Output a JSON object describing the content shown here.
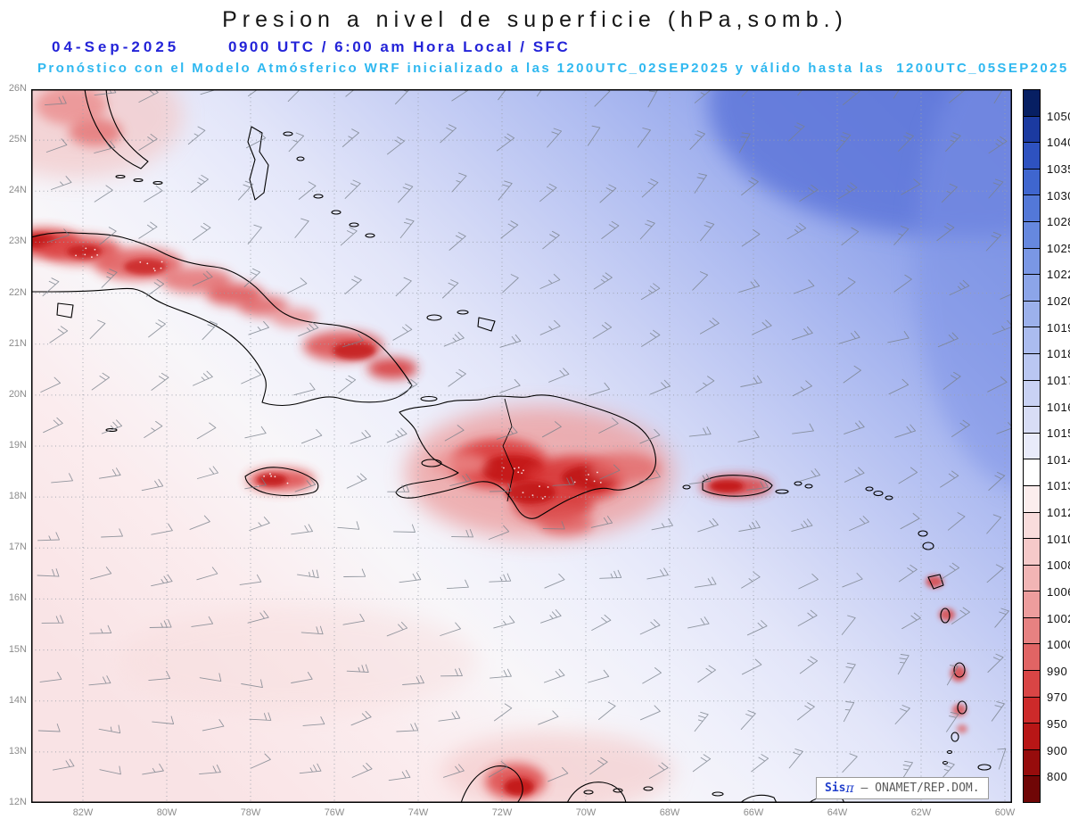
{
  "title": "Presion a nivel de superficie (hPa,somb.)",
  "header": {
    "date": "04-Sep-2025",
    "time_line": "0900 UTC / 6:00 am Hora Local / SFC",
    "forecast_line": "Pronóstico con el Modelo Atmósferico WRF inicializado a las 1200UTC_02SEP2025 y válido hasta las  1200UTC_05SEP2025",
    "date_color": "#2424d8",
    "forecast_color": "#2fb8f0",
    "title_color": "#161616"
  },
  "map": {
    "lat_labels": [
      "26N",
      "25N",
      "24N",
      "23N",
      "22N",
      "21N",
      "20N",
      "19N",
      "18N",
      "17N",
      "16N",
      "15N",
      "14N",
      "13N",
      "12N"
    ],
    "lon_labels": [
      "82W",
      "80W",
      "78W",
      "76W",
      "74W",
      "72W",
      "70W",
      "68W",
      "66W",
      "64W",
      "62W",
      "60W"
    ],
    "grid_color": "#9aa0aa",
    "wind_barb_color": "#79818b",
    "coastline_color": "#000000"
  },
  "colorbar": {
    "labels": [
      "1050",
      "1040",
      "1035",
      "1030",
      "1028",
      "1025",
      "1022",
      "1020",
      "1019",
      "1018",
      "1017",
      "1016",
      "1015",
      "1014",
      "1013",
      "1012",
      "1010",
      "1008",
      "1006",
      "1002",
      "1000",
      "990",
      "970",
      "950",
      "900",
      "800"
    ],
    "colors": [
      "#071f63",
      "#1b3aa0",
      "#2e52c0",
      "#3f66cf",
      "#5378d8",
      "#6688df",
      "#7a97e5",
      "#8ca5e9",
      "#9cb1ec",
      "#abbcef",
      "#bac7f2",
      "#c9d2f4",
      "#d8ddf6",
      "#e9ebfa",
      "#ffffff",
      "#fceded",
      "#f9dcdc",
      "#f6c9c9",
      "#f2b5b5",
      "#ed9d9d",
      "#e78181",
      "#e16464",
      "#d94545",
      "#cd2a2a",
      "#b81616",
      "#960c0c",
      "#700606"
    ]
  },
  "branding": {
    "prefix": "Sis",
    "pi": "π",
    "rest": " – ONAMET/REP.DOM.",
    "blue": "#2240cc",
    "gray": "#5a5a5a"
  },
  "chart_data": {
    "type": "heatmap",
    "title": "Presion a nivel de superficie (hPa,somb.)",
    "subtitle_date": "04-Sep-2025 0900 UTC / 6:00 am Hora Local / SFC",
    "model_run": "WRF inicializado 1200UTC_02SEP2025, válido hasta 1200UTC_05SEP2025",
    "x_ticks": [
      "82W",
      "80W",
      "78W",
      "76W",
      "74W",
      "72W",
      "70W",
      "68W",
      "66W",
      "64W",
      "62W",
      "60W"
    ],
    "y_ticks": [
      "26N",
      "25N",
      "24N",
      "23N",
      "22N",
      "21N",
      "20N",
      "19N",
      "18N",
      "17N",
      "16N",
      "15N",
      "14N",
      "13N",
      "12N"
    ],
    "x_range_deg_west": [
      83.2,
      59.8
    ],
    "y_range_deg_north": [
      12,
      26
    ],
    "units": "hPa",
    "colorbar_levels_hPa": [
      1050,
      1040,
      1035,
      1030,
      1028,
      1025,
      1022,
      1020,
      1019,
      1018,
      1017,
      1016,
      1015,
      1014,
      1013,
      1012,
      1010,
      1008,
      1006,
      1002,
      1000,
      990,
      970,
      950,
      900,
      800
    ],
    "legend_position": "right",
    "grid": true,
    "field_summary": [
      {
        "region": "Atlántico noreste (esquina superior derecha)",
        "approx_hPa": "1019-1022",
        "shade": "azul"
      },
      {
        "region": "Caribe central",
        "approx_hPa": "1014-1016",
        "shade": "lavanda pálido"
      },
      {
        "region": "Suroeste / borde inferior izquierdo",
        "approx_hPa": "1012-1013",
        "shade": "rosa pálido"
      },
      {
        "region": "Cuba, La Española, Jamaica, Puerto Rico, Antillas Menores (tierra)",
        "approx_hPa": "<=1008",
        "shade": "rojo (bajas)"
      }
    ],
    "overlays": [
      "barbas de viento (alisios del este)",
      "líneas de costa",
      "rejilla punteada lat/lon"
    ]
  }
}
